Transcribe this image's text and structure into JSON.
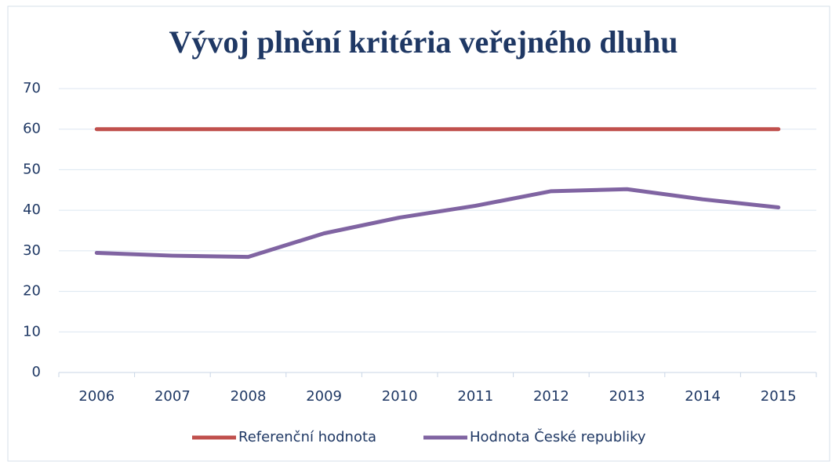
{
  "chart_data": {
    "type": "line",
    "title": "Vývoj plnění kritéria veřejného dluhu",
    "categories": [
      "2006",
      "2007",
      "2008",
      "2009",
      "2010",
      "2011",
      "2012",
      "2013",
      "2014",
      "2015"
    ],
    "series": [
      {
        "name": "Referenční hodnota",
        "color": "#c0504d",
        "values": [
          60,
          60,
          60,
          60,
          60,
          60,
          60,
          60,
          60,
          60
        ]
      },
      {
        "name": "Hodnota České republiky",
        "color": "#8064a2",
        "values": [
          29.5,
          28.8,
          28.5,
          34.3,
          38.2,
          41.1,
          44.7,
          45.2,
          42.7,
          40.7
        ]
      }
    ],
    "ylim": [
      0,
      70
    ],
    "yticks": [
      0,
      10,
      20,
      30,
      40,
      50,
      60,
      70
    ],
    "grid": true,
    "legend": "bottom"
  }
}
